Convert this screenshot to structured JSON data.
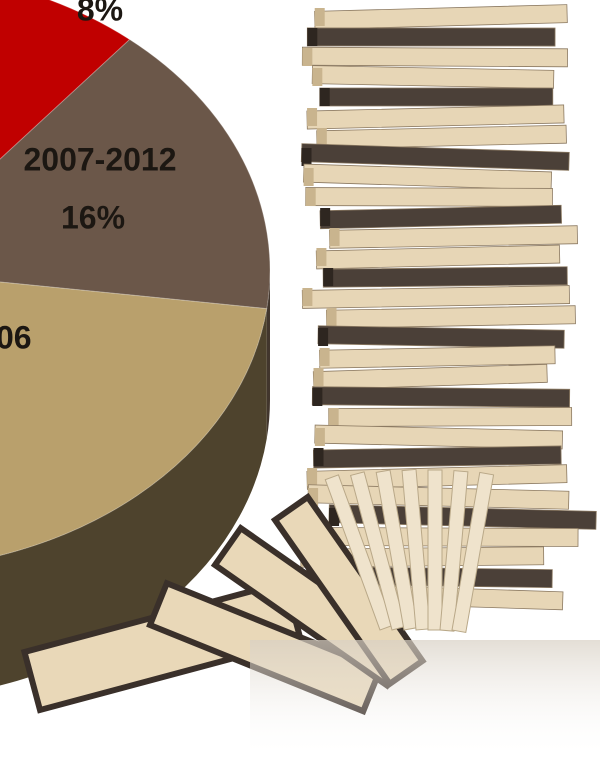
{
  "chart_data": {
    "type": "pie",
    "categories": [
      null,
      "2007-2012",
      "06"
    ],
    "values": [
      8,
      16,
      null
    ],
    "value_labels": [
      "8%",
      "16%",
      null
    ],
    "colors": [
      "#c00000",
      "#6b5749",
      "#b9a06c"
    ]
  }
}
